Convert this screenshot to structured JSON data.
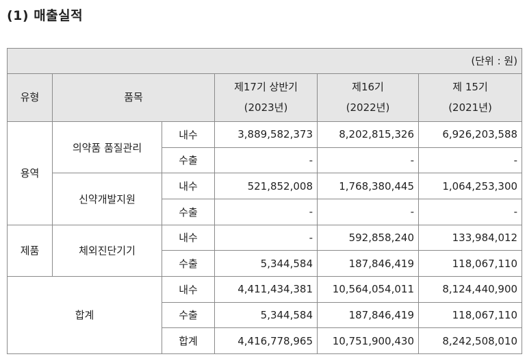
{
  "title": "(1) 매출실적",
  "unit": "(단위 : 원)",
  "headers": {
    "type": "유형",
    "item": "품목",
    "p1_line1": "제17기 상반기",
    "p1_line2": "(2023년)",
    "p2_line1": "제16기",
    "p2_line2": "(2022년)",
    "p3_line1": "제 15기",
    "p3_line2": "(2021년)"
  },
  "rows": [
    {
      "type": "용역",
      "item": "의약품 품질관리",
      "kind": "내수",
      "v": [
        "3,889,582,373",
        "8,202,815,326",
        "6,926,203,588"
      ]
    },
    {
      "kind": "수출",
      "v": [
        "-",
        "-",
        "-"
      ]
    },
    {
      "item": "신약개발지원",
      "kind": "내수",
      "v": [
        "521,852,008",
        "1,768,380,445",
        "1,064,253,300"
      ]
    },
    {
      "kind": "수출",
      "v": [
        "-",
        "-",
        "-"
      ]
    },
    {
      "type": "제품",
      "item": "체외진단기기",
      "kind": "내수",
      "v": [
        "-",
        "592,858,240",
        "133,984,012"
      ]
    },
    {
      "kind": "수출",
      "v": [
        "5,344,584",
        "187,846,419",
        "118,067,110"
      ]
    },
    {
      "type": "합계",
      "kind": "내수",
      "v": [
        "4,411,434,381",
        "10,564,054,011",
        "8,124,440,900"
      ]
    },
    {
      "kind": "수출",
      "v": [
        "5,344,584",
        "187,846,419",
        "118,067,110"
      ]
    },
    {
      "kind": "합계",
      "v": [
        "4,416,778,965",
        "10,751,900,430",
        "8,242,508,010"
      ]
    }
  ]
}
